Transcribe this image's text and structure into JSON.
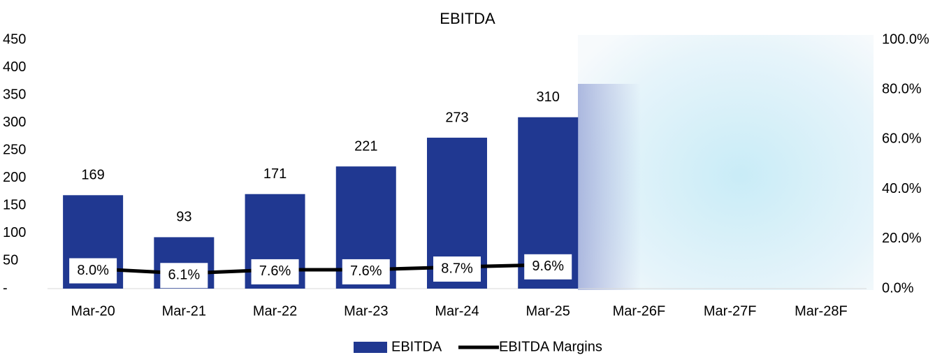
{
  "chart_data": {
    "type": "bar_line",
    "title": "EBITDA",
    "categories": [
      "Mar-20",
      "Mar-21",
      "Mar-22",
      "Mar-23",
      "Mar-24",
      "Mar-25",
      "Mar-26F",
      "Mar-27F",
      "Mar-28F"
    ],
    "series": [
      {
        "name": "EBITDA",
        "type": "bar",
        "color": "#203891",
        "values": [
          169,
          93,
          171,
          221,
          273,
          310,
          null,
          null,
          null
        ]
      },
      {
        "name": "EBITDA Margins",
        "type": "line",
        "axis": "y2",
        "color": "#000000",
        "values": [
          8.0,
          6.1,
          7.6,
          7.6,
          8.7,
          9.6,
          null,
          null,
          null
        ],
        "value_labels": [
          "8.0%",
          "6.1%",
          "7.6%",
          "7.6%",
          "8.7%",
          "9.6%",
          null,
          null,
          null
        ]
      }
    ],
    "ylim": [
      0,
      450
    ],
    "yticks": [
      {
        "value": 0,
        "label": "-"
      },
      50,
      100,
      150,
      200,
      250,
      300,
      350,
      400,
      450
    ],
    "y2lim": [
      0,
      100
    ],
    "y2ticks": [
      {
        "value": 0,
        "label": "0.0%"
      },
      {
        "value": 20,
        "label": "20.0%"
      },
      {
        "value": 40,
        "label": "40.0%"
      },
      {
        "value": 60,
        "label": "60.0%"
      },
      {
        "value": 80,
        "label": "80.0%"
      },
      {
        "value": 100,
        "label": "100.0%"
      }
    ],
    "legend": "bottom"
  }
}
